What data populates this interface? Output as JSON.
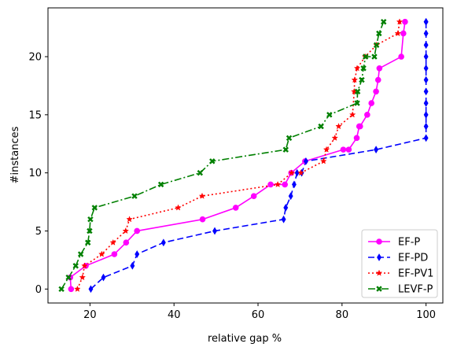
{
  "chart_data": {
    "type": "line",
    "title": "",
    "xlabel": "relative gap %",
    "ylabel": "#instances",
    "xlim": [
      10,
      104
    ],
    "ylim": [
      -1.2,
      24.2
    ],
    "xticks": [
      20,
      40,
      60,
      80,
      100
    ],
    "yticks": [
      0,
      5,
      10,
      15,
      20
    ],
    "grid": false,
    "legend_position": "lower-right",
    "series": [
      {
        "name": "EF-P",
        "color": "#ff00ff",
        "line_style": "solid",
        "marker": "circle",
        "x": [
          15.5,
          15.3,
          19.0,
          25.8,
          28.6,
          31.2,
          46.8,
          54.7,
          59.0,
          63.0,
          66.4,
          67.9,
          71.2,
          80.3,
          81.6,
          83.5,
          84.1,
          84.3,
          86.0,
          87.0,
          88.1,
          88.6,
          88.9,
          94.1,
          94.6,
          95.0
        ],
        "y": [
          0,
          1,
          2,
          3,
          4,
          5,
          6,
          7,
          8,
          9,
          9,
          10,
          11,
          12,
          12,
          13,
          14,
          14,
          15,
          16,
          17,
          18,
          19,
          20,
          22,
          23
        ]
      },
      {
        "name": "EF-PD",
        "color": "#0000ff",
        "line_style": "dashed",
        "marker": "thin-diamond",
        "x": [
          20.2,
          23.2,
          30.1,
          31.2,
          37.5,
          49.7,
          66.1,
          66.6,
          67.8,
          68.6,
          69.3,
          70.4,
          71.4,
          88.1,
          100,
          100,
          100,
          100,
          100,
          100,
          100,
          100,
          100,
          100,
          100,
          100
        ],
        "y": [
          0,
          1,
          2,
          3,
          4,
          5,
          6,
          7,
          8,
          9,
          10,
          10,
          11,
          12,
          13,
          14,
          15,
          16,
          17,
          18,
          19,
          20,
          21,
          22,
          23,
          23
        ]
      },
      {
        "name": "EF-PV1",
        "color": "#ff0000",
        "line_style": "dotted",
        "marker": "star",
        "x": [
          17.0,
          18.2,
          18.7,
          22.8,
          25.5,
          28.5,
          29.4,
          41.0,
          46.7,
          64.7,
          68.0,
          70.2,
          75.6,
          76.3,
          78.3,
          79.2,
          82.5,
          82.9,
          83.0,
          83.6,
          85.5,
          88.2,
          93.3,
          93.7
        ],
        "y": [
          0,
          1,
          2,
          3,
          4,
          5,
          6,
          7,
          8,
          9,
          10,
          10,
          11,
          12,
          13,
          14,
          15,
          17,
          18,
          19,
          20,
          21,
          22,
          23
        ]
      },
      {
        "name": "LEVF-P",
        "color": "#008000",
        "line_style": "dashdot",
        "marker": "x-filled",
        "x": [
          13.2,
          14.9,
          16.6,
          17.8,
          19.5,
          19.9,
          20.1,
          21.1,
          30.6,
          36.9,
          46.2,
          49.1,
          66.6,
          67.4,
          75.0,
          77.0,
          83.6,
          83.7,
          84.7,
          85.1,
          85.6,
          87.7,
          88.2,
          88.8,
          89.9
        ],
        "y": [
          0,
          1,
          2,
          3,
          4,
          5,
          6,
          7,
          8,
          9,
          10,
          11,
          12,
          13,
          14,
          15,
          16,
          17,
          18,
          19,
          20,
          20,
          21,
          22,
          23
        ]
      }
    ]
  }
}
